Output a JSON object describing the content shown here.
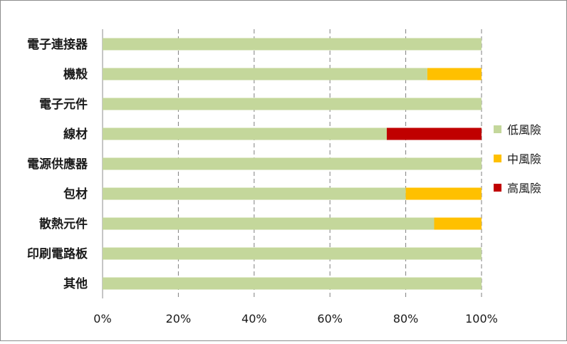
{
  "chart_data": {
    "type": "bar",
    "orientation": "horizontal",
    "stacked": true,
    "title": "",
    "xlabel": "",
    "ylabel": "",
    "xlim": [
      0,
      1
    ],
    "x_tick_labels": [
      "0%",
      "20%",
      "40%",
      "60%",
      "80%",
      "100%"
    ],
    "x_ticks": [
      0,
      0.2,
      0.4,
      0.6,
      0.8,
      1.0
    ],
    "grid": "vertical dashed",
    "legend_position": "right",
    "categories": [
      "電子連接器",
      "機殼",
      "電子元件",
      "線材",
      "電源供應器",
      "包材",
      "散熱元件",
      "印刷電路板",
      "其他"
    ],
    "series": [
      {
        "name": "低風險",
        "color": "#c4d79b",
        "values": [
          1.0,
          0.857,
          1.0,
          0.75,
          1.0,
          0.8,
          0.875,
          1.0,
          1.0
        ]
      },
      {
        "name": "中風險",
        "color": "#ffc000",
        "values": [
          0,
          0.143,
          0,
          0,
          0,
          0.2,
          0.125,
          0,
          0
        ]
      },
      {
        "name": "高風險",
        "color": "#c00000",
        "values": [
          0,
          0,
          0,
          0.25,
          0,
          0,
          0,
          0,
          0
        ]
      }
    ]
  }
}
